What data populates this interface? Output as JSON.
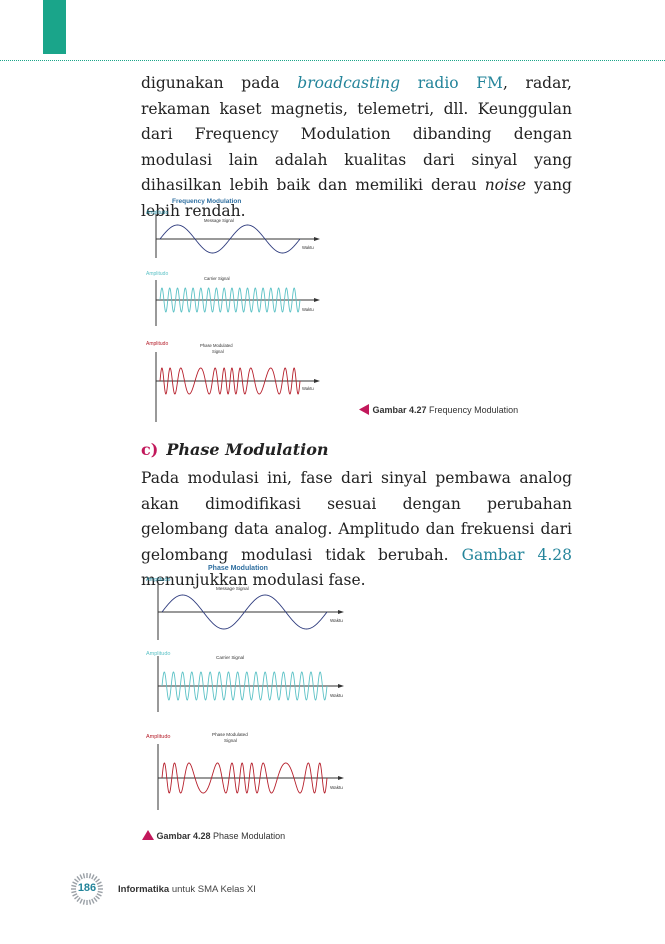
{
  "page": {
    "paragraph1": {
      "t1": "digunakan pada ",
      "link1": "broadcasting",
      "link2": "radio FM",
      "t2": ", radar, rekaman kaset magnetis, telemetri, dll. Keunggulan dari Frequency Modulation dibanding dengan modulasi lain adalah kualitas dari sinyal yang dihasilkan lebih baik dan memiliki derau ",
      "em": "noise",
      "t3": " yang lebih rendah."
    },
    "section": {
      "letter": "c)",
      "title": "Phase Modulation"
    },
    "paragraph2": {
      "t1": "Pada modulasi ini, fase dari sinyal pembawa analog akan dimodifikasi sesuai dengan perubahan gelombang data analog. Amplitudo dan frekuensi dari gelombang modulasi tidak berubah. ",
      "link": "Gambar 4.28",
      "t2": " menunjukkan modulasi fase."
    },
    "footer": {
      "page_number": "186",
      "book_bold": "Informatika",
      "book_rest": " untuk SMA Kelas XI"
    }
  },
  "figure1": {
    "title": "Frequency Modulation",
    "panels": [
      {
        "ylabel": "Amplitudo",
        "signal_label": "Message Signal",
        "xlabel": "Waktu"
      },
      {
        "ylabel": "Amplitudo",
        "signal_label": "Carrier Signal",
        "xlabel": "Waktu"
      },
      {
        "ylabel": "Amplitudo",
        "signal_label": "Phase Modulated",
        "signal_label2": "Signal",
        "xlabel": "Waktu"
      }
    ],
    "caption_bold": "Gambar 4.27",
    "caption_text": " Frequency Modulation"
  },
  "figure2": {
    "title": "Phase Modulation",
    "panels": [
      {
        "ylabel": "Amplitudo",
        "signal_label": "Message Signal",
        "xlabel": "Waktu"
      },
      {
        "ylabel": "Amplitudo",
        "signal_label": "Carrier Signal",
        "xlabel": "Waktu"
      },
      {
        "ylabel": "Amplitudo",
        "signal_label": "Phase Modulated",
        "signal_label2": "Signal",
        "xlabel": "Waktu"
      }
    ],
    "caption_bold": "Gambar 4.28",
    "caption_text": " Phase Modulation"
  },
  "colors": {
    "accent": "#1aa58a",
    "link": "#23849a",
    "message_wave": "#2f3c7e",
    "carrier_wave": "#5cc2c6",
    "modulated_wave": "#b6202c",
    "caption_marker": "#c2185b"
  },
  "icons": [
    "triangle-left-icon",
    "triangle-up-icon",
    "page-number-badge-icon"
  ]
}
